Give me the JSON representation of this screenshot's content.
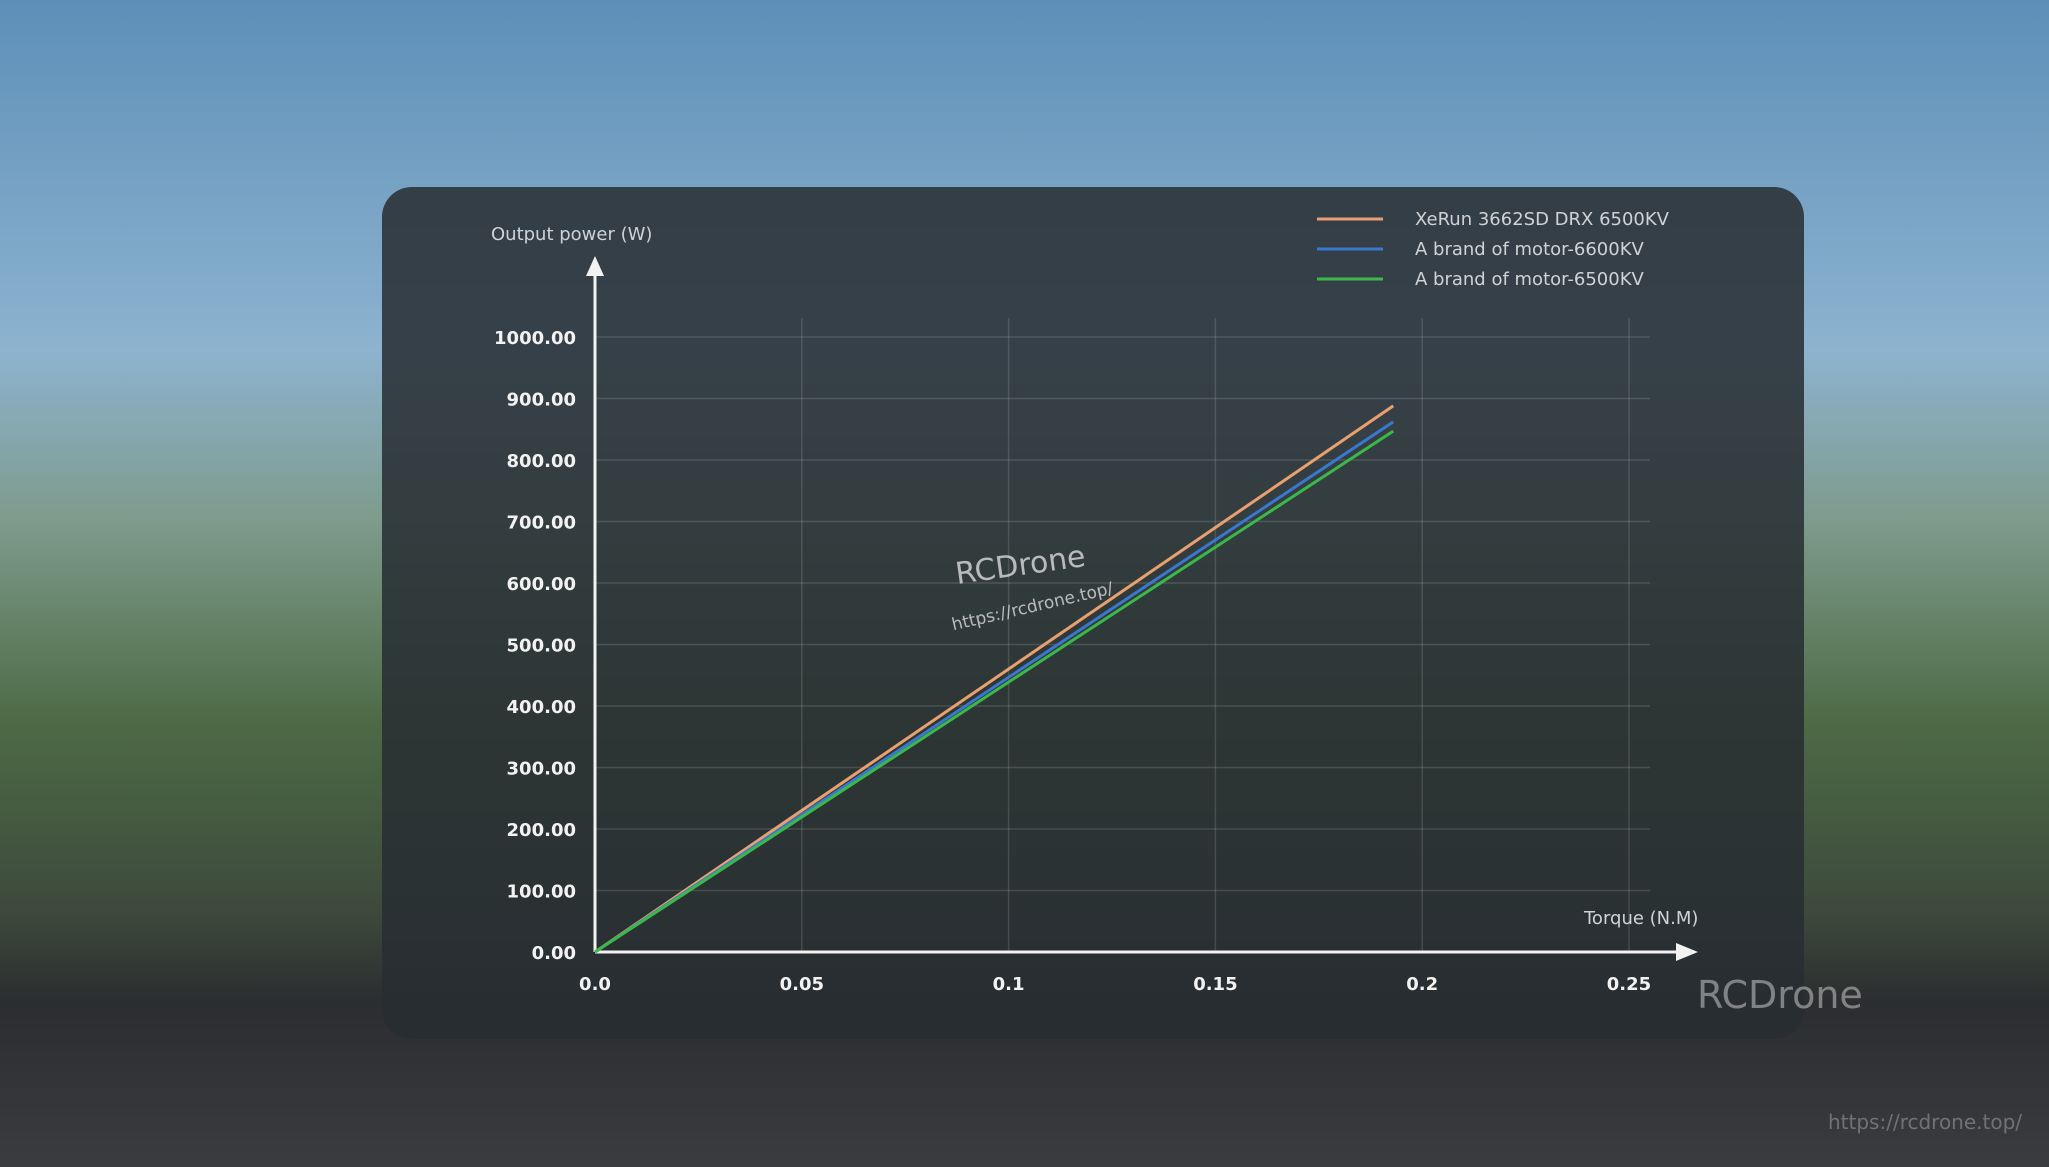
{
  "chart_data": {
    "type": "line",
    "xlabel": "Torque (N.M)",
    "ylabel": "Output power (W)",
    "xlim": [
      0,
      0.25
    ],
    "ylim": [
      0,
      1000
    ],
    "x_ticks": [
      "0.0",
      "0.05",
      "0.1",
      "0.15",
      "0.2",
      "0.25"
    ],
    "x_tick_values": [
      0,
      0.05,
      0.1,
      0.15,
      0.2,
      0.25
    ],
    "y_ticks": [
      "0.00",
      "100.00",
      "200.00",
      "300.00",
      "400.00",
      "500.00",
      "600.00",
      "700.00",
      "800.00",
      "900.00",
      "1000.00"
    ],
    "y_tick_values": [
      0,
      100,
      200,
      300,
      400,
      500,
      600,
      700,
      800,
      900,
      1000
    ],
    "grid": true,
    "legend_position": "top-right",
    "series": [
      {
        "name": "XeRun 3662SD DRX 6500KV",
        "color": "#e8a070",
        "x": [
          0,
          0.193
        ],
        "y": [
          0,
          888
        ]
      },
      {
        "name": "A brand of motor-6600KV",
        "color": "#3a78d0",
        "x": [
          0,
          0.193
        ],
        "y": [
          0,
          862
        ]
      },
      {
        "name": "A brand of motor-6500KV",
        "color": "#3cb84a",
        "x": [
          0,
          0.193
        ],
        "y": [
          0,
          847
        ]
      }
    ]
  },
  "watermark": {
    "brand": "RCDrone",
    "url": "https://rcdrone.top/"
  }
}
